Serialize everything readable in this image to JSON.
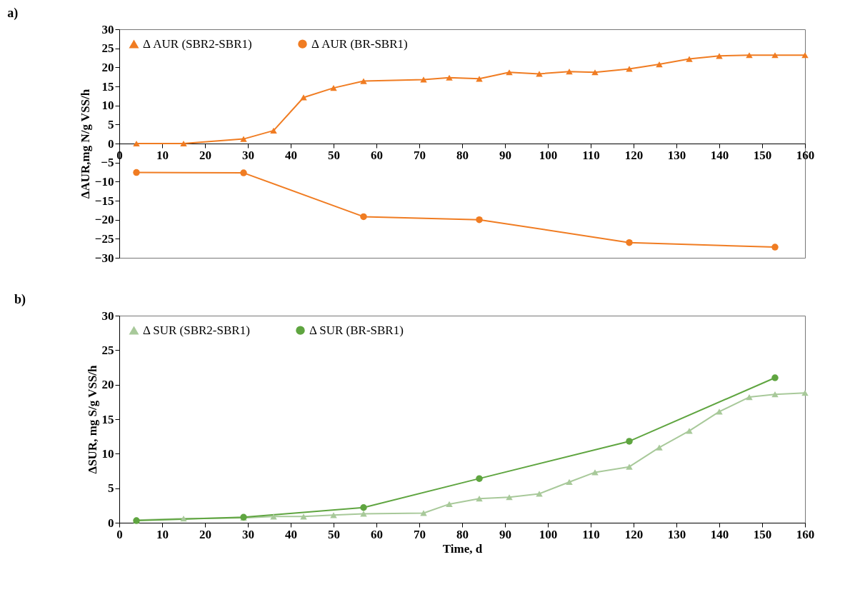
{
  "chart_data": [
    {
      "type": "line",
      "title": "a)",
      "ylabel": "ΔAUR,mg N/g VSS/h",
      "xlim": [
        0,
        160
      ],
      "xticks": [
        0,
        10,
        20,
        30,
        40,
        50,
        60,
        70,
        80,
        90,
        100,
        110,
        120,
        130,
        140,
        150,
        160
      ],
      "ylim": [
        -30,
        30
      ],
      "yticks": [
        -30,
        -25,
        -20,
        -15,
        -10,
        -5,
        0,
        5,
        10,
        15,
        20,
        25,
        30
      ],
      "legend": "top left",
      "line_style": "solid",
      "series": [
        {
          "name": "Δ AUR (SBR2-SBR1)",
          "color": "#f07c22",
          "marker": "triangle",
          "x": [
            4,
            15,
            29,
            36,
            43,
            50,
            57,
            71,
            77,
            84,
            91,
            98,
            105,
            111,
            119,
            126,
            133,
            140,
            147,
            153,
            160
          ],
          "values": [
            0,
            0,
            1.2,
            3.4,
            12.1,
            14.6,
            16.4,
            16.8,
            17.3,
            17,
            18.7,
            18.3,
            18.9,
            18.7,
            19.6,
            20.8,
            22.2,
            23,
            23.2,
            23.2,
            23.2
          ]
        },
        {
          "name": "Δ AUR (BR-SBR1)",
          "color": "#f07c22",
          "marker": "circle",
          "x": [
            4,
            29,
            57,
            84,
            119,
            153
          ],
          "values": [
            -7.6,
            -7.7,
            -19.2,
            -20,
            -26,
            -27.2
          ]
        }
      ]
    },
    {
      "type": "line",
      "title": "b)",
      "xlabel": "Time, d",
      "ylabel": "ΔSUR, mg S/g VSS/h",
      "xlim": [
        0,
        160
      ],
      "xticks": [
        0,
        10,
        20,
        30,
        40,
        50,
        60,
        70,
        80,
        90,
        100,
        110,
        120,
        130,
        140,
        150,
        160
      ],
      "ylim": [
        0,
        30
      ],
      "yticks": [
        0,
        5,
        10,
        15,
        20,
        25,
        30
      ],
      "legend": "top left",
      "line_style": "solid",
      "series": [
        {
          "name": "Δ SUR (SBR2-SBR1)",
          "color": "#a8c99a",
          "marker": "triangle",
          "x": [
            4,
            15,
            29,
            36,
            43,
            50,
            57,
            71,
            77,
            84,
            91,
            98,
            105,
            111,
            119,
            126,
            133,
            140,
            147,
            153,
            160
          ],
          "values": [
            0.4,
            0.6,
            0.7,
            0.9,
            0.9,
            1.1,
            1.3,
            1.4,
            2.7,
            3.5,
            3.7,
            4.2,
            5.9,
            7.3,
            8.1,
            10.9,
            13.3,
            16.1,
            18.2,
            18.6,
            18.8
          ]
        },
        {
          "name": "Δ SUR (BR-SBR1)",
          "color": "#5fa540",
          "marker": "circle",
          "x": [
            4,
            29,
            57,
            84,
            119,
            153
          ],
          "values": [
            0.3,
            0.8,
            2.2,
            6.4,
            11.8,
            21
          ]
        }
      ]
    }
  ]
}
